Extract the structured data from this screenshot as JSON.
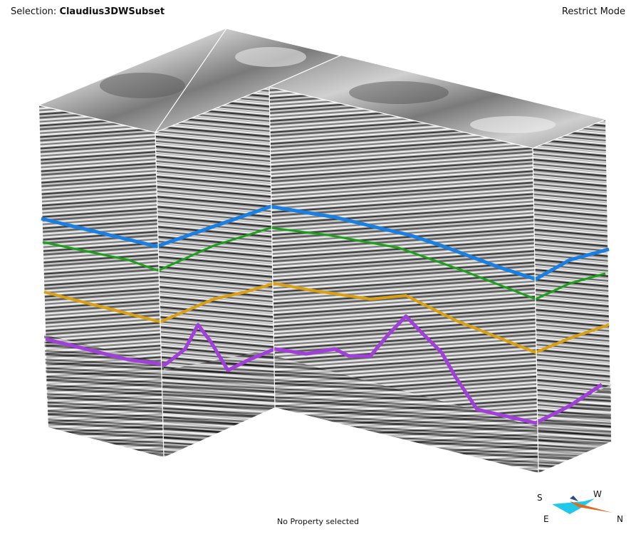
{
  "header": {
    "selection_label": "Selection:",
    "selection_value": "Claudius3DWSubset",
    "mode_label": "Restrict Mode"
  },
  "status": {
    "property_text": "No Property selected"
  },
  "horizons": [
    {
      "color": "#1a7fe0"
    },
    {
      "color": "#1aa01a"
    },
    {
      "color": "#d9a014"
    },
    {
      "color": "#a040d8"
    }
  ],
  "compass": {
    "labels": {
      "s": "S",
      "w": "W",
      "e": "E",
      "n": "N"
    },
    "colors": {
      "main": "#22c8e8",
      "north": "#e06a20",
      "dark": "#2a4a8a"
    }
  }
}
